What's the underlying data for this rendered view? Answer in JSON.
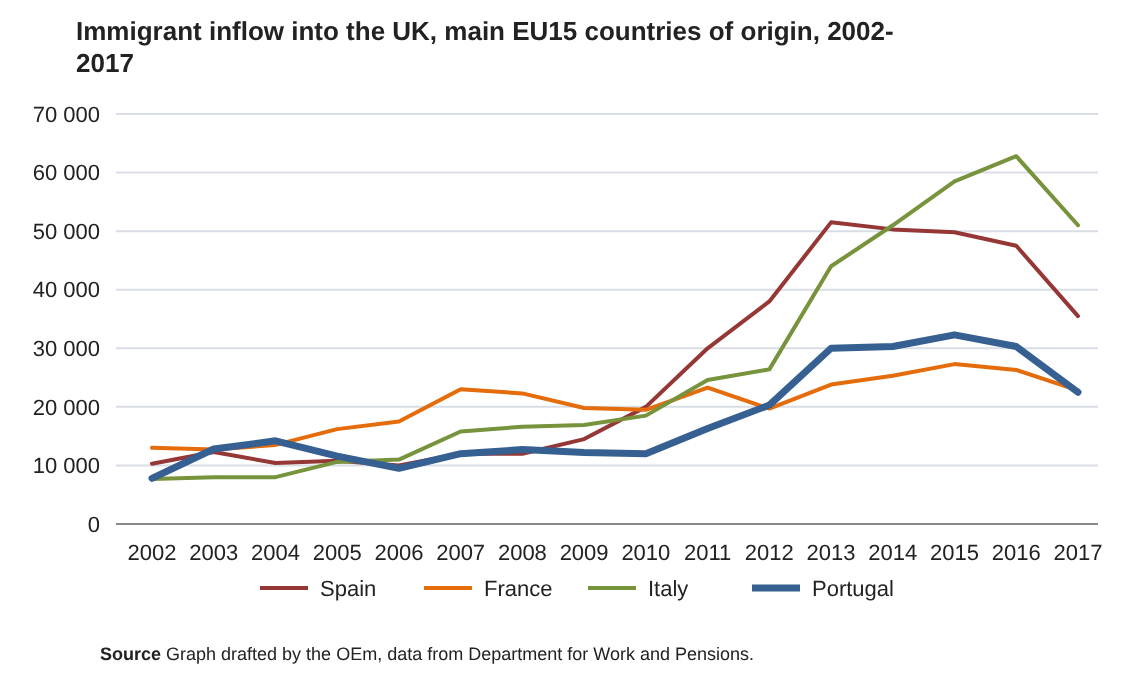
{
  "chart_data": {
    "type": "line",
    "title": "Immigrant inflow into the UK, main EU15 countries of origin, 2002-2017",
    "categories": [
      "2002",
      "2003",
      "2004",
      "2005",
      "2006",
      "2007",
      "2008",
      "2009",
      "2010",
      "2011",
      "2012",
      "2013",
      "2014",
      "2015",
      "2016",
      "2017"
    ],
    "series": [
      {
        "name": "Spain",
        "color": "#953735",
        "values": [
          10300,
          12300,
          10400,
          10800,
          10000,
          12000,
          12000,
          14500,
          20000,
          30000,
          38000,
          51500,
          50300,
          49800,
          47500,
          35500
        ]
      },
      {
        "name": "France",
        "color": "#e46c0a",
        "values": [
          13000,
          12700,
          13500,
          16200,
          17500,
          23000,
          22300,
          19800,
          19500,
          23300,
          19700,
          23800,
          25300,
          27300,
          26300,
          22800
        ]
      },
      {
        "name": "Italy",
        "color": "#77933c",
        "values": [
          7700,
          8000,
          8000,
          10600,
          11000,
          15800,
          16600,
          16900,
          18500,
          24600,
          26400,
          44000,
          51000,
          58500,
          62800,
          51000
        ]
      },
      {
        "name": "Portugal",
        "color": "#376092",
        "values": [
          7800,
          12800,
          14200,
          11600,
          9500,
          12000,
          12700,
          12200,
          12000,
          16300,
          20300,
          30000,
          30300,
          32300,
          30300,
          22500
        ]
      }
    ],
    "ylim": [
      0,
      70000
    ],
    "yticks": [
      0,
      {
        "value": 10000,
        "label": "10 000"
      },
      {
        "value": 20000,
        "label": "20 000"
      },
      {
        "value": 30000,
        "label": "30 000"
      },
      {
        "value": 40000,
        "label": "40 000"
      },
      {
        "value": 50000,
        "label": "50 000"
      },
      {
        "value": 60000,
        "label": "60 000"
      },
      {
        "value": 70000,
        "label": "70 000"
      }
    ],
    "grid": "y",
    "legend": "bottom",
    "marker": "none",
    "line_style": "solid",
    "annotations": [
      "Source Graph drafted by the OEm, data from Department for Work and Pensions."
    ]
  }
}
